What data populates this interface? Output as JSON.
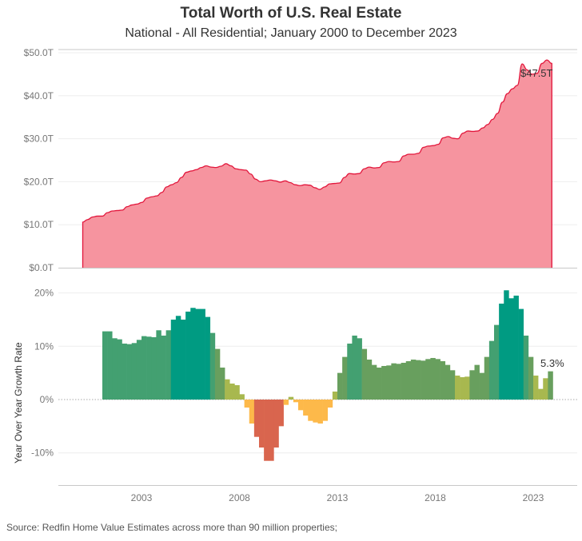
{
  "title": "Total Worth of U.S. Real Estate",
  "subtitle": "National - All Residential; January 2000 to December 2023",
  "source": "Source: Redfin Home Value Estimates across more than 90 million properties;",
  "colors": {
    "area_fill": "#F6949F",
    "area_line": "#E2163B",
    "growth_15_plus": "#009B82",
    "growth_10_15": "#43A071",
    "growth_5_10": "#689F5E",
    "growth_0_5": "#A8B84F",
    "decline_0_5": "#FDB94A",
    "decline_5_plus": "#D9654E"
  },
  "chart_data": [
    {
      "type": "area",
      "title": "Total Worth of U.S. Real Estate",
      "ylabel": "",
      "ylim": [
        0,
        50
      ],
      "yticks": [
        "$0.0T",
        "$10.0T",
        "$20.0T",
        "$30.0T",
        "$40.0T",
        "$50.0T"
      ],
      "ytick_values": [
        0,
        10,
        20,
        30,
        40,
        50
      ],
      "x_start": 2000.0,
      "x_end": 2023.95,
      "frequency": "quarterly",
      "unit": "trillion USD",
      "values": [
        10.6,
        11.2,
        11.8,
        12.0,
        12.0,
        12.8,
        13.2,
        13.3,
        13.4,
        14.2,
        14.6,
        14.8,
        15.2,
        16.2,
        16.5,
        16.7,
        17.5,
        18.8,
        19.3,
        19.8,
        21.0,
        22.2,
        22.5,
        22.8,
        23.3,
        23.7,
        23.4,
        23.3,
        23.6,
        24.2,
        23.7,
        23.0,
        22.8,
        22.7,
        21.8,
        20.6,
        20.0,
        20.2,
        20.4,
        20.2,
        19.9,
        20.2,
        19.8,
        19.3,
        19.1,
        19.3,
        19.2,
        18.6,
        18.2,
        18.8,
        19.5,
        19.6,
        19.7,
        21.0,
        21.9,
        21.8,
        21.9,
        23.0,
        23.4,
        23.2,
        23.3,
        24.4,
        24.7,
        24.6,
        24.7,
        26.0,
        26.4,
        26.4,
        26.6,
        28.0,
        28.3,
        28.4,
        28.7,
        30.2,
        30.5,
        30.1,
        30.0,
        31.3,
        31.8,
        31.7,
        31.8,
        32.5,
        33.3,
        34.5,
        35.9,
        38.5,
        40.5,
        41.6,
        42.4,
        47.4,
        46.0,
        45.0,
        45.2,
        47.5,
        48.3,
        47.5
      ],
      "end_label": "$47.5T"
    },
    {
      "type": "bar",
      "ylabel": "Year Over Year Growth Rate",
      "ylim": [
        -15,
        20
      ],
      "yticks": [
        "-10%",
        "0%",
        "10%",
        "20%"
      ],
      "ytick_values": [
        -10,
        0,
        10,
        20
      ],
      "x_start": 2001.0,
      "frequency": "quarterly",
      "unit": "percent",
      "values": [
        12.8,
        12.8,
        11.5,
        11.3,
        10.5,
        10.4,
        10.6,
        11.2,
        11.9,
        11.8,
        11.7,
        13.0,
        12.0,
        13.0,
        15.0,
        15.7,
        15.0,
        16.5,
        17.2,
        17.0,
        17.0,
        15.5,
        12.5,
        9.5,
        6.0,
        3.8,
        3.0,
        2.7,
        1.0,
        -1.5,
        -4.5,
        -7.0,
        -9.0,
        -11.5,
        -11.5,
        -9.0,
        -5.0,
        -1.0,
        0.5,
        -0.5,
        -2.0,
        -3.0,
        -4.0,
        -4.3,
        -4.5,
        -4.0,
        -1.5,
        1.5,
        5.0,
        8.0,
        10.5,
        12.0,
        11.5,
        9.5,
        7.5,
        6.5,
        6.0,
        6.3,
        6.4,
        6.8,
        6.7,
        6.9,
        7.2,
        7.5,
        7.4,
        7.3,
        7.6,
        7.8,
        7.6,
        7.2,
        6.5,
        5.5,
        4.5,
        4.2,
        4.3,
        5.5,
        6.5,
        5.0,
        8.0,
        11.0,
        14.0,
        18.0,
        20.5,
        19.0,
        19.5,
        17.0,
        12.0,
        8.0,
        4.5,
        2.0,
        4.0,
        5.3
      ],
      "end_label": "5.3%",
      "xticks": [
        "2003",
        "2008",
        "2013",
        "2018",
        "2023"
      ],
      "xtick_values": [
        2003,
        2008,
        2013,
        2018,
        2023
      ]
    }
  ]
}
